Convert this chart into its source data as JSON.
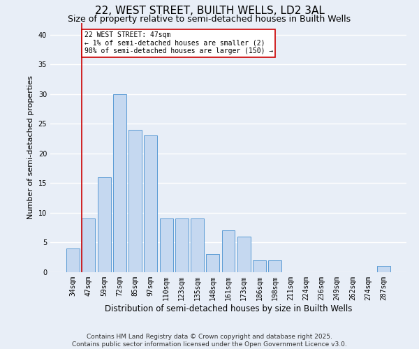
{
  "title": "22, WEST STREET, BUILTH WELLS, LD2 3AL",
  "subtitle": "Size of property relative to semi-detached houses in Builth Wells",
  "xlabel": "Distribution of semi-detached houses by size in Builth Wells",
  "ylabel": "Number of semi-detached properties",
  "categories": [
    "34sqm",
    "47sqm",
    "59sqm",
    "72sqm",
    "85sqm",
    "97sqm",
    "110sqm",
    "123sqm",
    "135sqm",
    "148sqm",
    "161sqm",
    "173sqm",
    "186sqm",
    "198sqm",
    "211sqm",
    "224sqm",
    "236sqm",
    "249sqm",
    "262sqm",
    "274sqm",
    "287sqm"
  ],
  "values": [
    4,
    9,
    16,
    30,
    24,
    23,
    9,
    9,
    9,
    3,
    7,
    6,
    2,
    2,
    0,
    0,
    0,
    0,
    0,
    0,
    1
  ],
  "bar_color": "#c5d8f0",
  "bar_edge_color": "#5b9bd5",
  "highlight_index": 1,
  "highlight_line_color": "#cc0000",
  "annotation_text": "22 WEST STREET: 47sqm\n← 1% of semi-detached houses are smaller (2)\n98% of semi-detached houses are larger (150) →",
  "annotation_box_color": "#ffffff",
  "annotation_box_edge_color": "#cc0000",
  "ylim": [
    0,
    42
  ],
  "yticks": [
    0,
    5,
    10,
    15,
    20,
    25,
    30,
    35,
    40
  ],
  "footer": "Contains HM Land Registry data © Crown copyright and database right 2025.\nContains public sector information licensed under the Open Government Licence v3.0.",
  "bg_color": "#e8eef7",
  "plot_bg_color": "#e8eef7",
  "grid_color": "#ffffff",
  "title_fontsize": 11,
  "subtitle_fontsize": 9,
  "axis_label_fontsize": 8,
  "tick_fontsize": 7,
  "footer_fontsize": 6.5,
  "annotation_fontsize": 7
}
